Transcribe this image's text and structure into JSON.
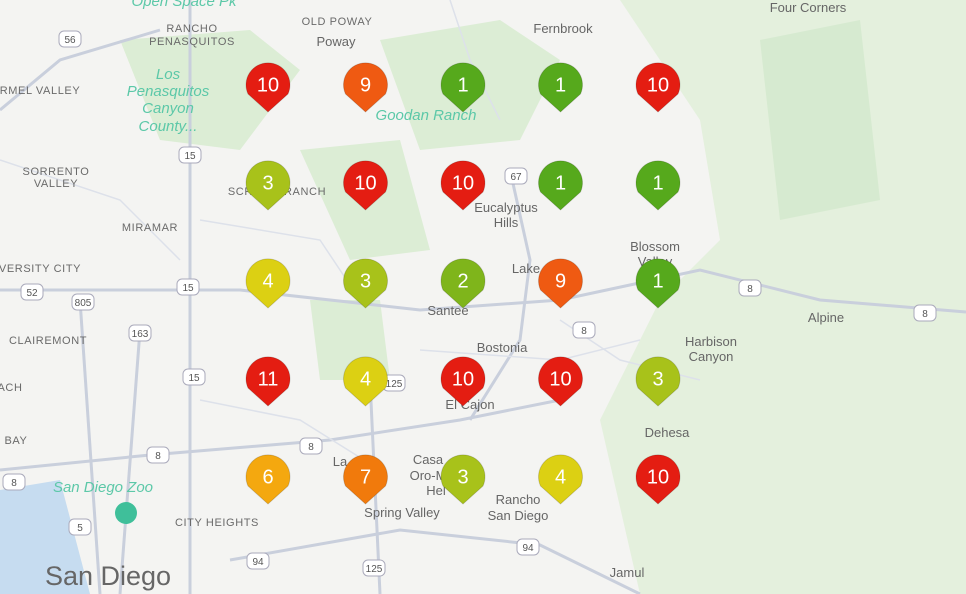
{
  "map": {
    "places": [
      "Open Space Pk",
      "RANCHO",
      "PENASQUITOS",
      "OLD POWAY",
      "Poway",
      "Fernbrook",
      "Four Corners",
      "RMEL VALLEY",
      "Los",
      "Penasquitos",
      "Canyon",
      "County...",
      "Goodan Ranch",
      "SORRENTO",
      "VALLEY",
      "SCRIPPS RANCH",
      "MIRAMAR",
      "Eucalyptus",
      "Hills",
      "Blossom",
      "Valley",
      "VERSITY CITY",
      "Lake",
      "Santee",
      "Alpine",
      "CLAIREMONT",
      "Bostonia",
      "Harbison",
      "Canyon",
      "ACH",
      "El Cajon",
      "BAY",
      "Dehesa",
      "La",
      "Casa",
      "Oro-M",
      "Hel",
      "San Diego Zoo",
      "CITY HEIGHTS",
      "Spring Valley",
      "Rancho",
      "San Diego",
      "San Diego",
      "Jamul"
    ],
    "roads": [
      "56",
      "15",
      "15",
      "52",
      "805",
      "163",
      "15",
      "8",
      "8",
      "8",
      "5",
      "67",
      "8",
      "8",
      "8",
      "94",
      "125",
      "125",
      "94"
    ],
    "markers": [
      {
        "value": 10,
        "color": "#e41d12"
      },
      {
        "value": 9,
        "color": "#ef5a12"
      },
      {
        "value": 1,
        "color": "#56a91c"
      },
      {
        "value": 1,
        "color": "#56a91c"
      },
      {
        "value": 10,
        "color": "#e41d12"
      },
      {
        "value": 3,
        "color": "#a8c21a"
      },
      {
        "value": 10,
        "color": "#e41d12"
      },
      {
        "value": 10,
        "color": "#e41d12"
      },
      {
        "value": 1,
        "color": "#56a91c"
      },
      {
        "value": 1,
        "color": "#56a91c"
      },
      {
        "value": 4,
        "color": "#dcd013"
      },
      {
        "value": 3,
        "color": "#a8c21a"
      },
      {
        "value": 2,
        "color": "#7fb51b"
      },
      {
        "value": 9,
        "color": "#ef5a12"
      },
      {
        "value": 1,
        "color": "#56a91c"
      },
      {
        "value": 11,
        "color": "#e41d12"
      },
      {
        "value": 4,
        "color": "#dcd013"
      },
      {
        "value": 10,
        "color": "#e41d12"
      },
      {
        "value": 10,
        "color": "#e41d12"
      },
      {
        "value": 3,
        "color": "#a8c21a"
      },
      {
        "value": 6,
        "color": "#f4a80f"
      },
      {
        "value": 7,
        "color": "#f17a0c"
      },
      {
        "value": 3,
        "color": "#a8c21a"
      },
      {
        "value": 4,
        "color": "#dcd013"
      },
      {
        "value": 10,
        "color": "#e41d12"
      }
    ]
  }
}
